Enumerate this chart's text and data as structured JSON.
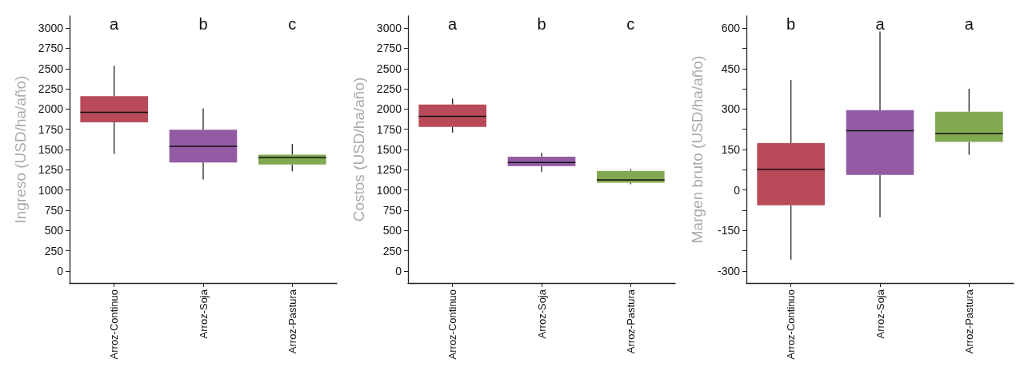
{
  "chart_data": [
    {
      "type": "box",
      "ylabel": "Ingreso (USD/ha/año)",
      "categories": [
        "Arroz-Continuo",
        "Arroz-Soja",
        "Arroz-Pastura"
      ],
      "colors": [
        "#b94a5a",
        "#925ba3",
        "#82a852"
      ],
      "ylim": [
        -150,
        3150
      ],
      "yticks": [
        0,
        250,
        500,
        750,
        1000,
        1250,
        1500,
        1750,
        2000,
        2250,
        2500,
        2750,
        3000
      ],
      "grid": false,
      "boxes": [
        {
          "low": 1445,
          "q1": 1835,
          "median": 1960,
          "q3": 2160,
          "high": 2535
        },
        {
          "low": 1130,
          "q1": 1340,
          "median": 1540,
          "q3": 1745,
          "high": 2010
        },
        {
          "low": 1230,
          "q1": 1315,
          "median": 1400,
          "q3": 1435,
          "high": 1570
        }
      ],
      "annotations": [
        "a",
        "b",
        "c"
      ]
    },
    {
      "type": "box",
      "ylabel": "Costos (USD/ha/año)",
      "categories": [
        "Arroz-Continuo",
        "Arroz-Soja",
        "Arroz-Pastura"
      ],
      "colors": [
        "#b94a5a",
        "#925ba3",
        "#82a852"
      ],
      "ylim": [
        -150,
        3150
      ],
      "yticks": [
        0,
        250,
        500,
        750,
        1000,
        1250,
        1500,
        1750,
        2000,
        2250,
        2500,
        2750,
        3000
      ],
      "grid": false,
      "boxes": [
        {
          "low": 1710,
          "q1": 1780,
          "median": 1910,
          "q3": 2055,
          "high": 2130
        },
        {
          "low": 1220,
          "q1": 1295,
          "median": 1340,
          "q3": 1410,
          "high": 1460
        },
        {
          "low": 1070,
          "q1": 1090,
          "median": 1125,
          "q3": 1235,
          "high": 1255
        }
      ],
      "annotations": [
        "a",
        "b",
        "c"
      ]
    },
    {
      "type": "box",
      "ylabel": "Margen bruto (USD/ha/año)",
      "categories": [
        "Arroz-Continuo",
        "Arroz-Soja",
        "Arroz-Pastura"
      ],
      "colors": [
        "#b94a5a",
        "#925ba3",
        "#82a852"
      ],
      "ylim": [
        -345,
        645
      ],
      "yticks": [
        -300,
        {
          "value": -225,
          "label": null
        },
        -150,
        {
          "value": -75,
          "label": null
        },
        0,
        {
          "value": 75,
          "label": null
        },
        150,
        {
          "value": 225,
          "label": null
        },
        300,
        {
          "value": 375,
          "label": null
        },
        450,
        {
          "value": 525,
          "label": null
        },
        600
      ],
      "grid": false,
      "boxes": [
        {
          "low": -258,
          "q1": -57,
          "median": 77,
          "q3": 174,
          "high": 408
        },
        {
          "low": -101,
          "q1": 56,
          "median": 220,
          "q3": 296,
          "high": 587
        },
        {
          "low": 131,
          "q1": 178,
          "median": 209,
          "q3": 290,
          "high": 375
        }
      ],
      "annotations": [
        "b",
        "a",
        "a"
      ]
    }
  ]
}
